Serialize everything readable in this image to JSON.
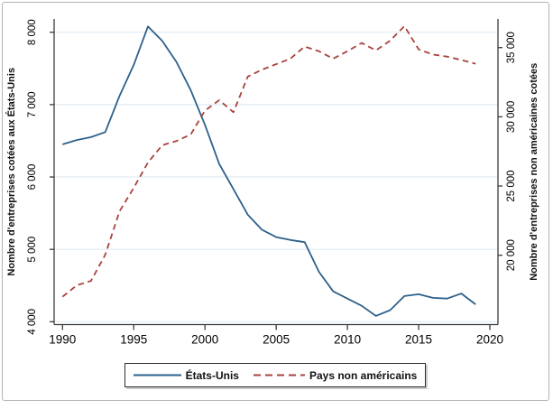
{
  "chart_data": {
    "type": "line",
    "x": [
      1990,
      1991,
      1992,
      1993,
      1994,
      1995,
      1996,
      1997,
      1998,
      1999,
      2000,
      2001,
      2002,
      2003,
      2004,
      2005,
      2006,
      2007,
      2008,
      2009,
      2010,
      2011,
      2012,
      2013,
      2014,
      2015,
      2016,
      2017,
      2018,
      2019
    ],
    "series": [
      {
        "name": "États-Unis",
        "axis": "left",
        "style": "solid",
        "color": "#2e608c",
        "values": [
          6450,
          6510,
          6550,
          6620,
          7120,
          7550,
          8080,
          7880,
          7590,
          7200,
          6720,
          6180,
          5830,
          5480,
          5270,
          5170,
          5130,
          5100,
          4690,
          4420,
          4320,
          4220,
          4080,
          4160,
          4355,
          4380,
          4330,
          4320,
          4390,
          4240
        ]
      },
      {
        "name": "Pays non américains",
        "axis": "right",
        "style": "dashed",
        "color": "#a8433e",
        "values": [
          17000,
          17830,
          18150,
          20040,
          23170,
          24870,
          26700,
          27950,
          28250,
          28720,
          30450,
          31200,
          30330,
          32900,
          33400,
          33800,
          34200,
          35070,
          34740,
          34200,
          34740,
          35330,
          34800,
          35500,
          36550,
          34870,
          34500,
          34350,
          34100,
          33830
        ]
      }
    ],
    "axes": {
      "x": {
        "ticks": [
          1990,
          1995,
          2000,
          2005,
          2010,
          2015,
          2020
        ],
        "tick_labels": [
          "1990",
          "1995",
          "2000",
          "2005",
          "2010",
          "2015",
          "2020"
        ]
      },
      "left": {
        "title": "Nombre d'entreprises cotées aux États-Unis",
        "ticks": [
          4000,
          5000,
          6000,
          7000,
          8000
        ],
        "tick_labels": [
          "4 000",
          "5 000",
          "6 000",
          "7 000",
          "8 000"
        ],
        "range": [
          4000,
          8000
        ]
      },
      "right": {
        "title": "Nombre d'entreprises non américaines cotées",
        "ticks": [
          20000,
          25000,
          30000,
          35000
        ],
        "tick_labels": [
          "20 000",
          "25 000",
          "30 000",
          "35 000"
        ],
        "range": [
          18200,
          36800
        ]
      }
    },
    "grid": true,
    "legend_position": "bottom-center"
  },
  "colors": {
    "us_line": "#2e608c",
    "non_us_line": "#a8433e",
    "gridline": "#e3ecf3",
    "axis": "#3c3c3c",
    "tick_text": "#000000",
    "figure_border": "#b3b3b3",
    "legend_border": "#2e2e2e"
  }
}
